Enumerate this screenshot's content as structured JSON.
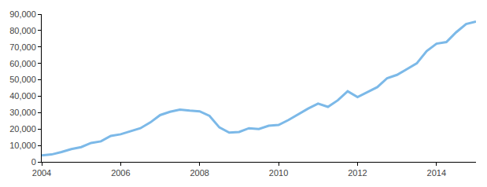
{
  "chart_data": {
    "type": "line",
    "x": [
      2004,
      2004.25,
      2004.5,
      2004.75,
      2005,
      2005.25,
      2005.5,
      2005.75,
      2006,
      2006.25,
      2006.5,
      2006.75,
      2007,
      2007.25,
      2007.5,
      2007.75,
      2008,
      2008.25,
      2008.5,
      2008.75,
      2009,
      2009.25,
      2009.5,
      2009.75,
      2010,
      2010.25,
      2010.5,
      2010.75,
      2011,
      2011.25,
      2011.5,
      2011.75,
      2012,
      2012.25,
      2012.5,
      2012.75,
      2013,
      2013.25,
      2013.5,
      2013.75,
      2014,
      2014.25,
      2014.5,
      2014.75,
      2015
    ],
    "values": [
      4000,
      4500,
      6000,
      7800,
      9000,
      11500,
      12500,
      15800,
      16800,
      18500,
      20500,
      24000,
      28500,
      30500,
      31800,
      31200,
      30800,
      28000,
      21000,
      17800,
      18200,
      20500,
      20000,
      22000,
      22500,
      25500,
      29000,
      32500,
      35500,
      33500,
      37500,
      43000,
      39500,
      42500,
      45500,
      51000,
      53000,
      56500,
      60000,
      67500,
      72000,
      73000,
      79000,
      84000,
      85500
    ],
    "color": "#7cb9e8",
    "xlim": [
      2004,
      2015
    ],
    "xticks": [
      2004,
      2006,
      2008,
      2010,
      2012,
      2014
    ],
    "ylim": [
      0,
      90000
    ],
    "yticks": [
      0,
      {
        "value": 10000,
        "label": "10,000"
      },
      {
        "value": 20000,
        "label": "20,000"
      },
      {
        "value": 30000,
        "label": "30,000"
      },
      {
        "value": 40000,
        "label": "40,000"
      },
      {
        "value": 50000,
        "label": "50,000"
      },
      {
        "value": 60000,
        "label": "60,000"
      },
      {
        "value": 70000,
        "label": "70,000"
      },
      {
        "value": 80000,
        "label": "80,000"
      },
      {
        "value": 90000,
        "label": "90,000"
      }
    ],
    "grid": false
  }
}
